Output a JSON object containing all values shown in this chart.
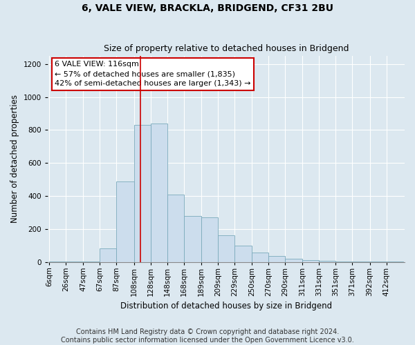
{
  "title": "6, VALE VIEW, BRACKLA, BRIDGEND, CF31 2BU",
  "subtitle": "Size of property relative to detached houses in Bridgend",
  "xlabel": "Distribution of detached houses by size in Bridgend",
  "ylabel": "Number of detached properties",
  "footer_line1": "Contains HM Land Registry data © Crown copyright and database right 2024.",
  "footer_line2": "Contains public sector information licensed under the Open Government Licence v3.0.",
  "annotation_title": "6 VALE VIEW: 116sqm",
  "annotation_line1": "← 57% of detached houses are smaller (1,835)",
  "annotation_line2": "42% of semi-detached houses are larger (1,343) →",
  "property_value": 116,
  "bar_categories": [
    "6sqm",
    "26sqm",
    "47sqm",
    "67sqm",
    "87sqm",
    "108sqm",
    "128sqm",
    "148sqm",
    "168sqm",
    "189sqm",
    "209sqm",
    "229sqm",
    "250sqm",
    "270sqm",
    "290sqm",
    "311sqm",
    "331sqm",
    "351sqm",
    "371sqm",
    "392sqm",
    "412sqm"
  ],
  "bin_edges": [
    6,
    26,
    47,
    67,
    87,
    108,
    128,
    148,
    168,
    189,
    209,
    229,
    250,
    270,
    290,
    311,
    331,
    351,
    371,
    392,
    412,
    432
  ],
  "bar_heights": [
    3,
    3,
    3,
    80,
    490,
    830,
    840,
    410,
    280,
    270,
    160,
    100,
    55,
    35,
    18,
    12,
    8,
    3,
    3,
    3,
    3
  ],
  "bar_color": "#ccdded",
  "bar_edge_color": "#7aaabb",
  "vline_color": "#cc0000",
  "vline_x": 116,
  "ylim": [
    0,
    1250
  ],
  "yticks": [
    0,
    200,
    400,
    600,
    800,
    1000,
    1200
  ],
  "background_color": "#dce8f0",
  "plot_bg_color": "#dce8f0",
  "grid_color": "#ffffff",
  "annotation_box_color": "#ffffff",
  "annotation_box_edge": "#cc0000",
  "title_fontsize": 10,
  "subtitle_fontsize": 9,
  "axis_label_fontsize": 8.5,
  "tick_fontsize": 7.5,
  "footer_fontsize": 7,
  "annotation_fontsize": 8
}
